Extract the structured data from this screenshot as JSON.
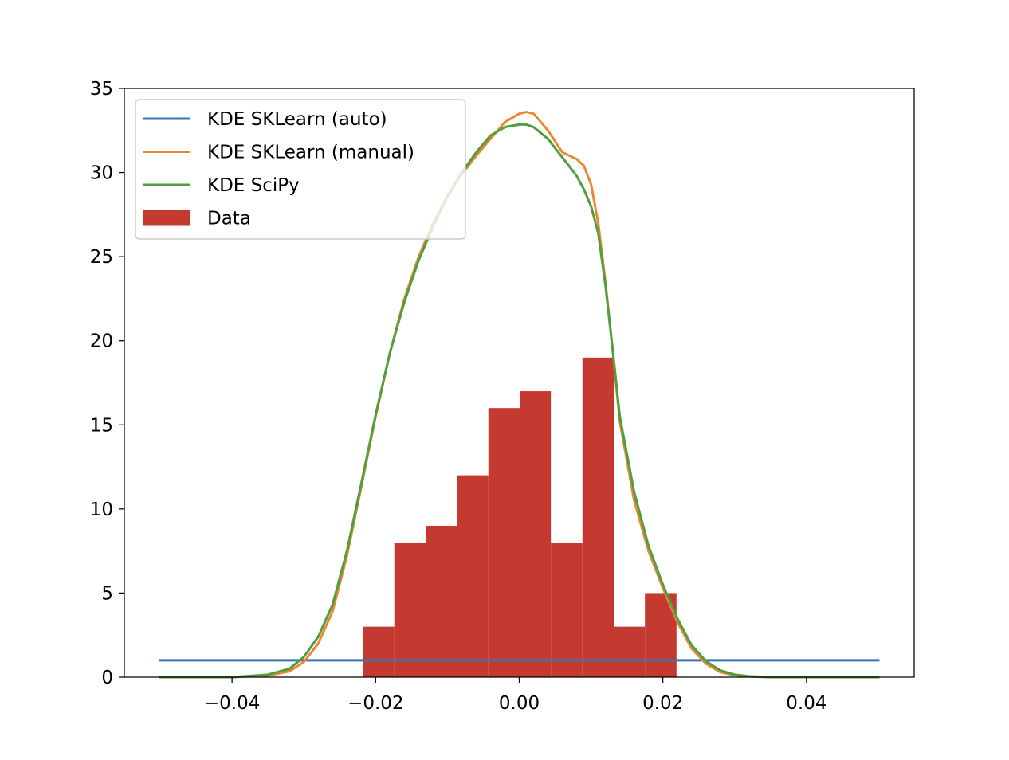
{
  "chart_data": {
    "type": "bar",
    "title": "",
    "xlabel": "",
    "ylabel": "",
    "xlim": [
      -0.055,
      0.055
    ],
    "ylim": [
      0,
      35
    ],
    "xticks": [
      -0.04,
      -0.02,
      0.0,
      0.02,
      0.04
    ],
    "xtick_labels": [
      "−0.04",
      "−0.02",
      "0.00",
      "0.02",
      "0.04"
    ],
    "yticks": [
      0,
      5,
      10,
      15,
      20,
      25,
      30,
      35
    ],
    "ytick_labels": [
      "0",
      "5",
      "10",
      "15",
      "20",
      "25",
      "30",
      "35"
    ],
    "grid": false,
    "legend_position": "top-left",
    "histogram": {
      "name": "Data",
      "color": "#c43a31",
      "bin_edges": [
        -0.0218,
        -0.0174,
        -0.013,
        -0.0087,
        -0.0043,
        0.0001,
        0.0044,
        0.0088,
        0.0132,
        0.0175,
        0.0219
      ],
      "values": [
        3,
        8,
        9,
        12,
        16,
        17,
        8,
        19,
        3,
        5
      ]
    },
    "series": [
      {
        "name": "KDE SKLearn (auto)",
        "color": "#3a75b0",
        "x": [
          -0.05,
          0.05
        ],
        "y": [
          1.0,
          1.0
        ]
      },
      {
        "name": "KDE SKLearn (manual)",
        "color": "#ef8636",
        "x": [
          -0.05,
          -0.04,
          -0.035,
          -0.032,
          -0.03,
          -0.028,
          -0.026,
          -0.024,
          -0.022,
          -0.02,
          -0.018,
          -0.016,
          -0.014,
          -0.012,
          -0.01,
          -0.008,
          -0.006,
          -0.004,
          -0.002,
          0.0,
          0.001,
          0.002,
          0.004,
          0.006,
          0.008,
          0.009,
          0.01,
          0.011,
          0.012,
          0.013,
          0.014,
          0.016,
          0.018,
          0.02,
          0.022,
          0.024,
          0.026,
          0.028,
          0.03,
          0.032,
          0.035,
          0.04,
          0.05
        ],
        "y": [
          0.0,
          0.0,
          0.1,
          0.35,
          0.9,
          2.0,
          3.9,
          7.2,
          11.3,
          15.5,
          19.3,
          22.5,
          25.0,
          27.0,
          28.6,
          29.9,
          31.0,
          32.0,
          33.0,
          33.5,
          33.6,
          33.5,
          32.5,
          31.2,
          30.8,
          30.4,
          29.3,
          27.0,
          23.5,
          19.5,
          15.2,
          10.5,
          7.5,
          5.3,
          3.3,
          1.7,
          0.8,
          0.3,
          0.12,
          0.04,
          0.0,
          0.0,
          0.0
        ]
      },
      {
        "name": "KDE SciPy",
        "color": "#509e3e",
        "x": [
          -0.05,
          -0.04,
          -0.035,
          -0.032,
          -0.03,
          -0.028,
          -0.026,
          -0.024,
          -0.022,
          -0.02,
          -0.018,
          -0.016,
          -0.014,
          -0.012,
          -0.01,
          -0.008,
          -0.006,
          -0.004,
          -0.002,
          0.0,
          0.001,
          0.002,
          0.004,
          0.006,
          0.008,
          0.009,
          0.01,
          0.011,
          0.012,
          0.013,
          0.014,
          0.016,
          0.018,
          0.02,
          0.022,
          0.024,
          0.026,
          0.028,
          0.03,
          0.032,
          0.035,
          0.04,
          0.05
        ],
        "y": [
          0.0,
          0.0,
          0.15,
          0.5,
          1.2,
          2.4,
          4.3,
          7.5,
          11.5,
          15.6,
          19.3,
          22.3,
          24.8,
          26.8,
          28.6,
          30.0,
          31.2,
          32.2,
          32.7,
          32.85,
          32.85,
          32.7,
          32.0,
          30.9,
          29.8,
          29.0,
          28.0,
          26.4,
          23.3,
          19.5,
          15.5,
          11.0,
          7.8,
          5.5,
          3.5,
          1.9,
          0.95,
          0.4,
          0.15,
          0.05,
          0.0,
          0.0,
          0.0
        ]
      }
    ]
  }
}
